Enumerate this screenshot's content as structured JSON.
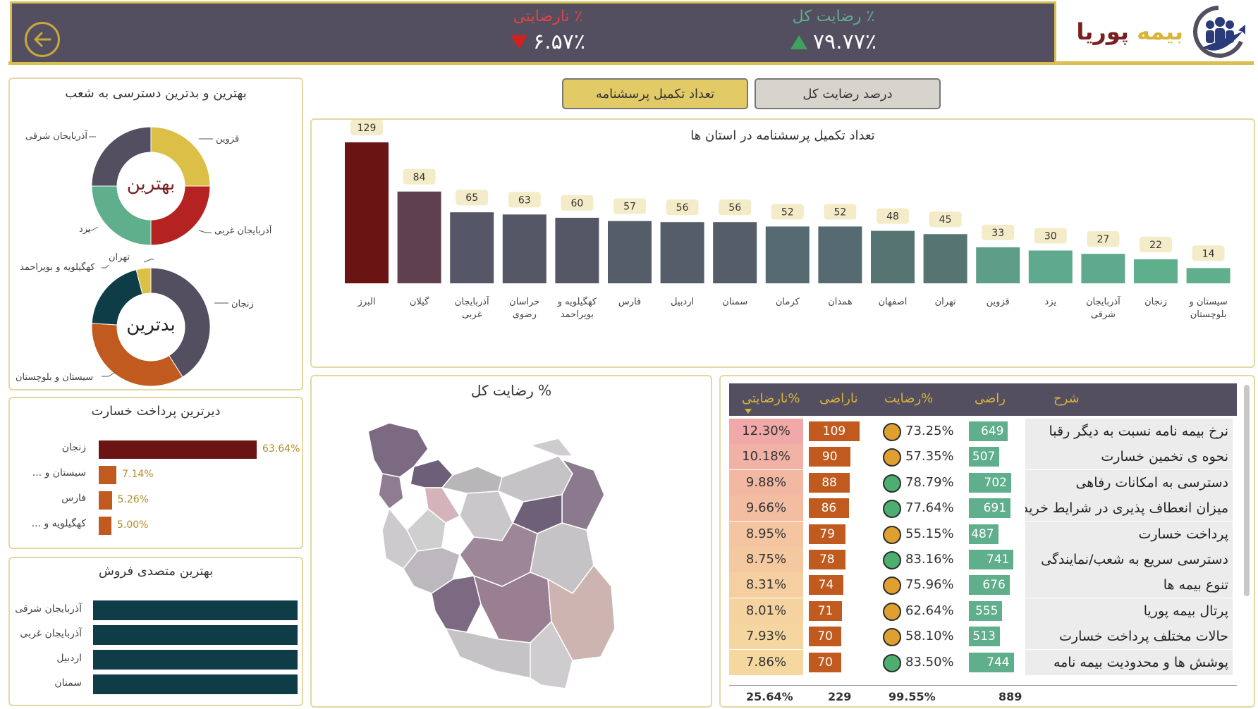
{
  "header": {
    "logo_part1": "بیمه",
    "logo_part2": "پوریا",
    "kpi_total_satisfaction_label": "٪ رضایت کل",
    "kpi_total_satisfaction_value": "۷۹.۷۷٪",
    "kpi_dissatisfaction_label": "٪ نارضایتی",
    "kpi_dissatisfaction_value": "۶.۵۷٪",
    "colors": {
      "band": "#534f60",
      "gold": "#d8bf50",
      "up": "#3fa160",
      "down": "#d21f1f"
    }
  },
  "tabs": {
    "active": "تعداد تکمیل پرسشنامه",
    "inactive": "درصد رضایت کل"
  },
  "bar_chart": {
    "title": "تعداد تکمیل پرسشنامه در استان ها",
    "categories": [
      "البرز",
      "گیلان",
      "آذربایجان غربی",
      "خراسان رضوی",
      "کهگیلویه و بویراحمد",
      "فارس",
      "اردبیل",
      "سمنان",
      "کرمان",
      "همدان",
      "اصفهان",
      "تهران",
      "قزوین",
      "یزد",
      "آذربایجان شرقی",
      "زنجان",
      "سیستان و بلوچستان"
    ],
    "category_lines": [
      [
        "البرز"
      ],
      [
        "گیلان"
      ],
      [
        "آذربایجان",
        "غربی"
      ],
      [
        "خراسان",
        "رضوی"
      ],
      [
        "کهگیلویه و",
        "بویراحمد"
      ],
      [
        "فارس"
      ],
      [
        "اردبیل"
      ],
      [
        "سمنان"
      ],
      [
        "کرمان"
      ],
      [
        "همدان"
      ],
      [
        "اصفهان"
      ],
      [
        "تهران"
      ],
      [
        "قزوین"
      ],
      [
        "یزد"
      ],
      [
        "آذربایجان",
        "شرقی"
      ],
      [
        "زنجان"
      ],
      [
        "سیستان و",
        "بلوچستان"
      ]
    ],
    "values": [
      129,
      84,
      65,
      63,
      60,
      57,
      56,
      56,
      52,
      52,
      48,
      45,
      33,
      30,
      27,
      22,
      14
    ],
    "colors": [
      "#6b1414",
      "#5e404e",
      "#555766",
      "#555766",
      "#555766",
      "#555d68",
      "#555d68",
      "#555d68",
      "#566a72",
      "#566a72",
      "#567572",
      "#567572",
      "#5e9d88",
      "#5fa98e",
      "#5fa98e",
      "#5fae8c",
      "#5fae8c"
    ]
  },
  "chart_data": {
    "type": "bar",
    "title": "تعداد تکمیل پرسشنامه در استان ها",
    "categories": [
      "البرز",
      "گیلان",
      "آذربایجان غربی",
      "خراسان رضوی",
      "کهگیلویه و بویراحمد",
      "فارس",
      "اردبیل",
      "سمنان",
      "کرمان",
      "همدان",
      "اصفهان",
      "تهران",
      "قزوین",
      "یزد",
      "آذربایجان شرقی",
      "زنجان",
      "سیستان و بلوچستان"
    ],
    "values": [
      129,
      84,
      65,
      63,
      60,
      57,
      56,
      56,
      52,
      52,
      48,
      45,
      33,
      30,
      27,
      22,
      14
    ],
    "xlabel": "",
    "ylabel": "",
    "ylim": [
      0,
      129
    ],
    "grid": false
  },
  "donuts": {
    "title": "بهترین و بدترین دسترسی به شعب",
    "best": {
      "center": "بهترین",
      "labels": [
        "قزوین",
        "آذربایجان غربی",
        "یزد",
        "آذربایجان شرقی"
      ],
      "values": [
        25,
        25,
        25,
        25
      ],
      "colors": [
        "#dcbf46",
        "#b42222",
        "#5fae8c",
        "#534f60"
      ]
    },
    "worst": {
      "center": "بدترین",
      "labels": [
        "زنجان",
        "سیستان و بلوچستان",
        "کهگیلویه و بویراحمد",
        "تهران"
      ],
      "values": [
        41,
        35,
        20,
        4
      ],
      "colors": [
        "#534f60",
        "#c05a1f",
        "#0f3d47",
        "#dcbf46"
      ]
    }
  },
  "late_payments": {
    "title": "دیرترین پرداخت خسارت",
    "items": [
      {
        "label": "زنجان",
        "value": "63.64%",
        "num": 63.64,
        "color": "#6b1414"
      },
      {
        "label": "سیستان و ...",
        "value": "7.14%",
        "num": 7.14,
        "color": "#c05a1f"
      },
      {
        "label": "فارس",
        "value": "5.26%",
        "num": 5.26,
        "color": "#c05a1f"
      },
      {
        "label": "کهگیلویه و ...",
        "value": "5.00%",
        "num": 5.0,
        "color": "#c05a1f"
      }
    ]
  },
  "sales": {
    "title": "بهترین متصدی فروش",
    "items": [
      {
        "label": "آذربایجان شرقی",
        "num": 100
      },
      {
        "label": "آذربایجان غربی",
        "num": 100
      },
      {
        "label": "اردبیل",
        "num": 100
      },
      {
        "label": "سمنان",
        "num": 100
      }
    ],
    "color": "#0f3d47"
  },
  "map": {
    "title": "% رضایت کل"
  },
  "table": {
    "headers": {
      "desc": "شرح",
      "raz": "راضی",
      "pct": "%رضایت",
      "nar": "ناراضی",
      "dis": "%نارضایتی"
    },
    "rows": [
      {
        "desc": "نرخ بیمه نامه نسبت به دیگر رقبا",
        "raz": "649",
        "raz_n": 649,
        "pct": "73.25%",
        "dot": "#e0a030",
        "nar": "109",
        "nar_n": 109,
        "dis": "12.30%",
        "dis_bg": "#f0a8a8"
      },
      {
        "desc": "نحوه ی تخمین خسارت",
        "raz": "507",
        "raz_n": 507,
        "pct": "57.35%",
        "dot": "#e0a030",
        "nar": "90",
        "nar_n": 90,
        "dis": "10.18%",
        "dis_bg": "#f1b1a4"
      },
      {
        "desc": "دسترسی به امکانات رفاهی",
        "raz": "702",
        "raz_n": 702,
        "pct": "78.79%",
        "dot": "#4caf70",
        "nar": "88",
        "nar_n": 88,
        "dis": "9.88%",
        "dis_bg": "#f2b8a2"
      },
      {
        "desc": "میزان انعطاف پذیری در شرایط خرید",
        "raz": "691",
        "raz_n": 691,
        "pct": "77.64%",
        "dot": "#4caf70",
        "nar": "86",
        "nar_n": 86,
        "dis": "9.66%",
        "dis_bg": "#f3bda1"
      },
      {
        "desc": "پرداخت خسارت",
        "raz": "487",
        "raz_n": 487,
        "pct": "55.15%",
        "dot": "#e0a030",
        "nar": "79",
        "nar_n": 79,
        "dis": "8.95%",
        "dis_bg": "#f4c5a0"
      },
      {
        "desc": "دسترسی سریع به شعب/نمایندگی",
        "raz": "741",
        "raz_n": 741,
        "pct": "83.16%",
        "dot": "#4caf70",
        "nar": "78",
        "nar_n": 78,
        "dis": "8.75%",
        "dis_bg": "#f5c9a0"
      },
      {
        "desc": "تنوع بیمه ها",
        "raz": "676",
        "raz_n": 676,
        "pct": "75.96%",
        "dot": "#e0a030",
        "nar": "74",
        "nar_n": 74,
        "dis": "8.31%",
        "dis_bg": "#f5cfa0"
      },
      {
        "desc": "پرتال بیمه پوریا",
        "raz": "555",
        "raz_n": 555,
        "pct": "62.64%",
        "dot": "#e0a030",
        "nar": "71",
        "nar_n": 71,
        "dis": "8.01%",
        "dis_bg": "#f5d3a0"
      },
      {
        "desc": "حالات مختلف پرداخت خسارت",
        "raz": "513",
        "raz_n": 513,
        "pct": "58.10%",
        "dot": "#e0a030",
        "nar": "70",
        "nar_n": 70,
        "dis": "7.93%",
        "dis_bg": "#f5d6a0"
      },
      {
        "desc": "پوشش ها و محدودیت بیمه نامه",
        "raz": "744",
        "raz_n": 744,
        "pct": "83.50%",
        "dot": "#4caf70",
        "nar": "70",
        "nar_n": 70,
        "dis": "7.86%",
        "dis_bg": "#f5d8a0"
      }
    ],
    "footer": {
      "dis": "25.64%",
      "nar": "229",
      "pct": "99.55%",
      "raz": "889"
    }
  }
}
